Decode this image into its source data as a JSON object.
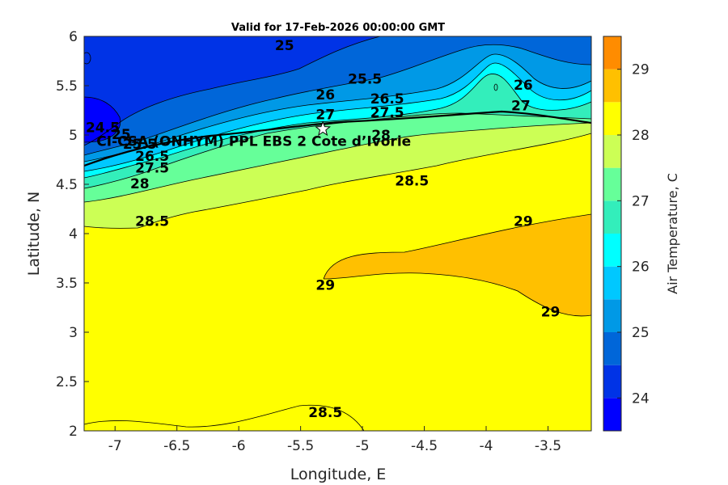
{
  "chart_data": {
    "type": "contourf",
    "title": "Valid for 17-Feb-2026 00:00:00 GMT",
    "xlabel": "Longitude, E",
    "ylabel": "Latitude, N",
    "xlim": [
      -7.25,
      -3.15
    ],
    "ylim": [
      2,
      6
    ],
    "xticks": [
      -7,
      -6.5,
      -6,
      -5.5,
      -5,
      -4.5,
      -4,
      -3.5
    ],
    "xtick_labels": [
      "-7",
      "-6.5",
      "-6",
      "-5.5",
      "-5",
      "-4.5",
      "-4",
      "-3.5"
    ],
    "yticks": [
      2,
      2.5,
      3,
      3.5,
      4,
      4.5,
      5,
      5.5,
      6
    ],
    "ytick_labels": [
      "2",
      "2.5",
      "3",
      "3.5",
      "4",
      "4.5",
      "5",
      "5.5",
      "6"
    ],
    "colorbar": {
      "label": "Air Temperature, C",
      "range": [
        23.5,
        29.5
      ],
      "ticks": [
        24,
        25,
        26,
        27,
        28,
        29
      ],
      "tick_labels": [
        "24",
        "25",
        "26",
        "27",
        "28",
        "29"
      ],
      "levels": [
        23.5,
        24,
        24.5,
        25,
        25.5,
        26,
        26.5,
        27,
        27.5,
        28,
        28.5,
        29,
        29.5
      ],
      "colors": [
        "#0000ff",
        "#0033e6",
        "#0066d9",
        "#0099e6",
        "#00c8ff",
        "#00ffff",
        "#33eebb",
        "#66ff99",
        "#ccff55",
        "#ffff00",
        "#ffc000",
        "#ff8c00",
        "#ff4500",
        "#ff0000"
      ]
    },
    "region_levels": {
      "bg": 28.25,
      "r_29": 28.75,
      "r_28_5b": 28.25,
      "r_28_5a": 27.75,
      "r_28": 27.25,
      "r_27_5": 26.75,
      "r_27": 26.25,
      "r_26_5": 25.75,
      "r_26": 25.25,
      "r_25_5": 24.75,
      "r_25": 24.25,
      "r_24_5": 23.75
    },
    "contour_labels": [
      {
        "text": "25",
        "lon": -5.63,
        "lat": 5.9
      },
      {
        "text": "25.5",
        "lon": -4.98,
        "lat": 5.56
      },
      {
        "text": "26",
        "lon": -5.3,
        "lat": 5.4
      },
      {
        "text": "26.5",
        "lon": -4.8,
        "lat": 5.36
      },
      {
        "text": "27",
        "lon": -5.3,
        "lat": 5.2
      },
      {
        "text": "27.5",
        "lon": -4.8,
        "lat": 5.22
      },
      {
        "text": "28",
        "lon": -4.85,
        "lat": 4.99
      },
      {
        "text": "26",
        "lon": -3.7,
        "lat": 5.5
      },
      {
        "text": "27",
        "lon": -3.72,
        "lat": 5.29
      },
      {
        "text": "24.5",
        "lon": -7.1,
        "lat": 5.07
      },
      {
        "text": "25",
        "lon": -6.95,
        "lat": 5.0
      },
      {
        "text": "25.5",
        "lon": -6.8,
        "lat": 4.9
      },
      {
        "text": "26.5",
        "lon": -6.7,
        "lat": 4.78
      },
      {
        "text": "27.5",
        "lon": -6.7,
        "lat": 4.66
      },
      {
        "text": "28",
        "lon": -6.8,
        "lat": 4.5
      },
      {
        "text": "28.5",
        "lon": -4.6,
        "lat": 4.53
      },
      {
        "text": "28.5",
        "lon": -6.7,
        "lat": 4.12
      },
      {
        "text": "29",
        "lon": -3.7,
        "lat": 4.12
      },
      {
        "text": "29",
        "lon": -5.3,
        "lat": 3.47
      },
      {
        "text": "29",
        "lon": -3.48,
        "lat": 3.2
      },
      {
        "text": "28.5",
        "lon": -5.3,
        "lat": 2.18
      }
    ],
    "annotations": [
      {
        "text": "CI-CSA (ONHYM) PPL EBS 2 Cote d’Ivorie",
        "lon": -7.15,
        "lat": 4.93,
        "marker": "star",
        "marker_lon": -5.32,
        "marker_lat": 5.06
      }
    ]
  }
}
